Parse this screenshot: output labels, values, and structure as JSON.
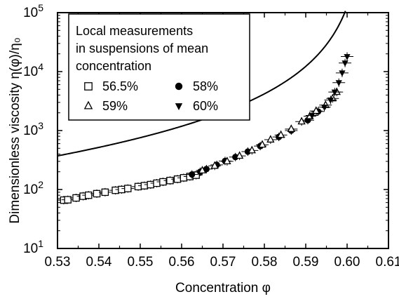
{
  "chart_data": {
    "type": "scatter",
    "xlabel": "Concentration φ",
    "ylabel": "Dimensionless viscosity η(φ)/η₀",
    "xlim": [
      0.53,
      0.61
    ],
    "ylim": [
      10,
      100000
    ],
    "yscale": "log",
    "grid": false,
    "x_ticks": [
      "0.53",
      "0.54",
      "0.55",
      "0.56",
      "0.57",
      "0.58",
      "0.59",
      "0.60",
      "0.61"
    ],
    "y_ticks": [
      {
        "base": "10",
        "exp": "1",
        "value": 10
      },
      {
        "base": "10",
        "exp": "2",
        "value": 100
      },
      {
        "base": "10",
        "exp": "3",
        "value": 1000
      },
      {
        "base": "10",
        "exp": "4",
        "value": 10000
      },
      {
        "base": "10",
        "exp": "5",
        "value": 100000
      }
    ],
    "legend": {
      "position": "top-left",
      "title_lines": [
        "Local measurements",
        "in suspensions of mean",
        "concentration"
      ]
    },
    "series": [
      {
        "name": "56.5%",
        "marker": "open-square",
        "points": [
          [
            0.5315,
            66
          ],
          [
            0.5325,
            67
          ],
          [
            0.5345,
            72
          ],
          [
            0.5362,
            77
          ],
          [
            0.5375,
            80
          ],
          [
            0.5395,
            85
          ],
          [
            0.5415,
            90
          ],
          [
            0.544,
            97
          ],
          [
            0.5455,
            100
          ],
          [
            0.547,
            104
          ],
          [
            0.5495,
            112
          ],
          [
            0.551,
            116
          ],
          [
            0.5525,
            121
          ],
          [
            0.554,
            128
          ],
          [
            0.5555,
            135
          ],
          [
            0.5572,
            142
          ],
          [
            0.559,
            150
          ],
          [
            0.5605,
            158
          ],
          [
            0.562,
            166
          ],
          [
            0.5635,
            175
          ]
        ]
      },
      {
        "name": "58%",
        "marker": "filled-circle",
        "points": [
          [
            0.5625,
            180
          ],
          [
            0.5645,
            200
          ],
          [
            0.566,
            222
          ],
          [
            0.5685,
            262
          ],
          [
            0.5705,
            305
          ],
          [
            0.573,
            355
          ],
          [
            0.576,
            440
          ],
          [
            0.579,
            545
          ],
          [
            0.5835,
            780
          ],
          [
            0.5865,
            1000
          ],
          [
            0.5905,
            1500
          ],
          [
            0.593,
            2100
          ]
        ]
      },
      {
        "name": "59%",
        "marker": "open-triangle",
        "points": [
          [
            0.565,
            210
          ],
          [
            0.568,
            252
          ],
          [
            0.571,
            300
          ],
          [
            0.574,
            372
          ],
          [
            0.577,
            460
          ],
          [
            0.5795,
            575
          ],
          [
            0.5815,
            700
          ],
          [
            0.584,
            840
          ],
          [
            0.5865,
            1060
          ],
          [
            0.589,
            1420
          ],
          [
            0.591,
            1750
          ],
          [
            0.5925,
            2150
          ],
          [
            0.5948,
            2700
          ],
          [
            0.5965,
            3500
          ],
          [
            0.5975,
            4500
          ]
        ]
      },
      {
        "name": "60%",
        "marker": "filled-triangle-down",
        "points": [
          [
            0.5915,
            1800
          ],
          [
            0.5945,
            2500
          ],
          [
            0.596,
            3300
          ],
          [
            0.597,
            4500
          ],
          [
            0.598,
            6500
          ],
          [
            0.5988,
            9500
          ],
          [
            0.5995,
            14000
          ],
          [
            0.6,
            18000
          ]
        ]
      }
    ]
  }
}
